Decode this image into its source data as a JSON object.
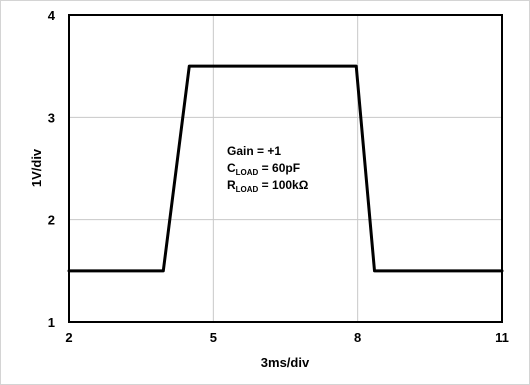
{
  "chart_data": {
    "type": "line",
    "xlabel": "3ms/div",
    "ylabel": "1V/div",
    "xlim": [
      2,
      11
    ],
    "ylim": [
      1,
      4
    ],
    "xticks": [
      "2",
      "5",
      "8",
      "11"
    ],
    "yticks": [
      "1",
      "2",
      "3",
      "4"
    ],
    "grid": true,
    "series": [
      {
        "x": [
          2.0,
          3.96,
          4.5,
          7.97,
          8.35,
          11.0
        ],
        "y": [
          1.5,
          1.5,
          3.5,
          3.5,
          1.5,
          1.5
        ],
        "color": "#000000"
      }
    ],
    "annotation": {
      "gain": "Gain = +1",
      "cload_prefix": "C",
      "cload_sub": "LOAD",
      "cload_value": " = 60pF",
      "rload_prefix": "R",
      "rload_sub": "LOAD",
      "rload_value": " = 100kΩ"
    }
  }
}
